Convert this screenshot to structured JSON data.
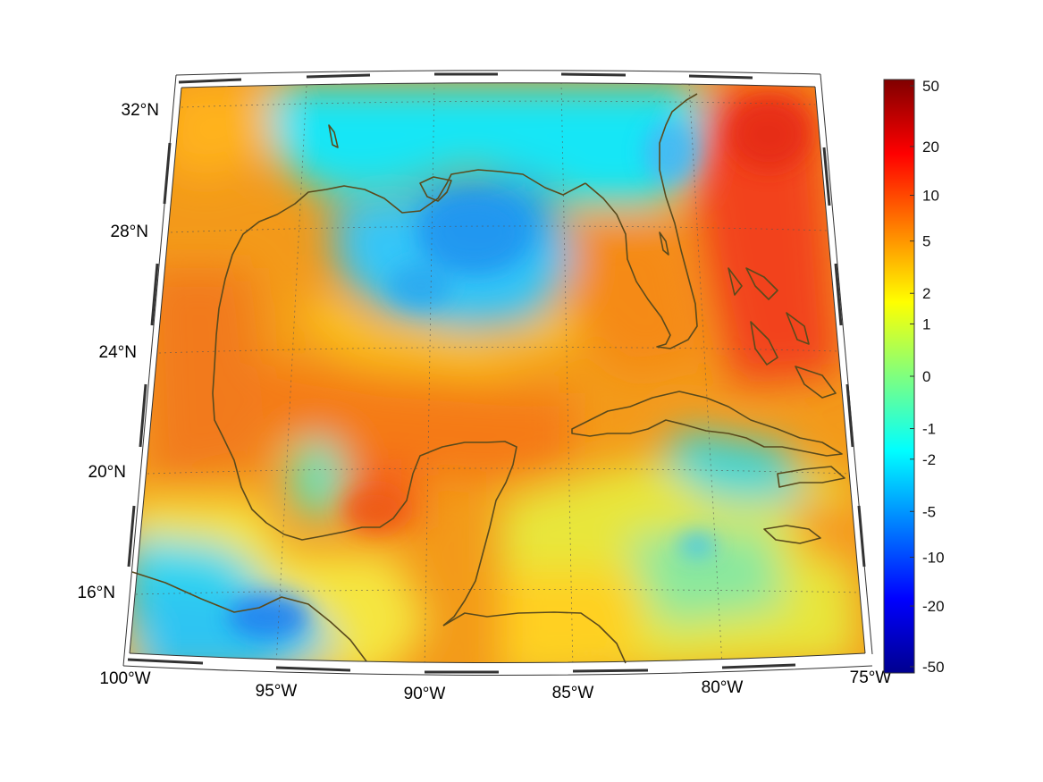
{
  "map": {
    "projection": "conic",
    "lon_range": [
      -100,
      -75
    ],
    "lat_range": [
      14,
      33
    ],
    "longitude_labels": [
      "100°W",
      "95°W",
      "90°W",
      "85°W",
      "80°W",
      "75°W"
    ],
    "latitude_labels": [
      "32°N",
      "28°N",
      "24°N",
      "20°N",
      "16°N"
    ],
    "coastline_color": "#5a4a1c",
    "graticule": true
  },
  "colorbar": {
    "colormap": "jet",
    "scale": "symmetric-log",
    "range": [
      -50,
      50
    ],
    "tick_labels": [
      "50",
      "20",
      "10",
      "5",
      "2",
      "1",
      "0",
      "-1",
      "-2",
      "-5",
      "-10",
      "-20",
      "-50"
    ]
  }
}
